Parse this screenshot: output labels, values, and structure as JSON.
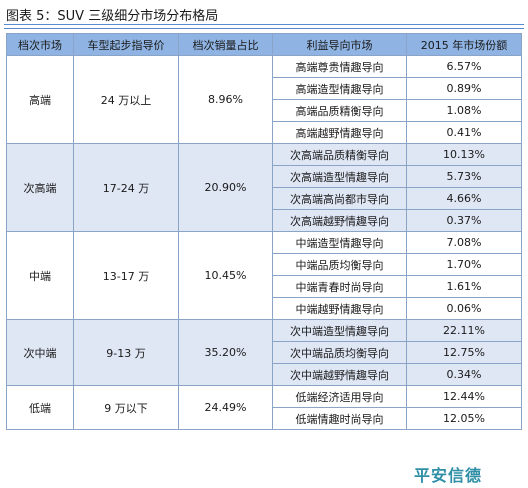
{
  "title": "图表 5：SUV 三级细分市场分布格局",
  "headers": [
    "档次市场",
    "车型起步指导价",
    "档次销量占比",
    "利益导向市场",
    "2015 年市场份额"
  ],
  "segments": [
    {
      "tier": "高端",
      "price": "24 万以上",
      "share": "8.96%",
      "shaded": false,
      "subs": [
        {
          "name": "高端尊贵情趣导向",
          "share": "6.57%"
        },
        {
          "name": "高端造型情趣导向",
          "share": "0.89%"
        },
        {
          "name": "高端品质精衡导向",
          "share": "1.08%"
        },
        {
          "name": "高端越野情趣导向",
          "share": "0.41%"
        }
      ]
    },
    {
      "tier": "次高端",
      "price": "17-24 万",
      "share": "20.90%",
      "shaded": true,
      "subs": [
        {
          "name": "次高端品质精衡导向",
          "share": "10.13%"
        },
        {
          "name": "次高端造型情趣导向",
          "share": "5.73%"
        },
        {
          "name": "次高端高尚都市导向",
          "share": "4.66%"
        },
        {
          "name": "次高端越野情趣导向",
          "share": "0.37%"
        }
      ]
    },
    {
      "tier": "中端",
      "price": "13-17 万",
      "share": "10.45%",
      "shaded": false,
      "subs": [
        {
          "name": "中端造型情趣导向",
          "share": "7.08%"
        },
        {
          "name": "中端品质均衡导向",
          "share": "1.70%"
        },
        {
          "name": "中端青春时尚导向",
          "share": "1.61%"
        },
        {
          "name": "中端越野情趣导向",
          "share": "0.06%"
        }
      ]
    },
    {
      "tier": "次中端",
      "price": "9-13 万",
      "share": "35.20%",
      "shaded": true,
      "subs": [
        {
          "name": "次中端造型情趣导向",
          "share": "22.11%"
        },
        {
          "name": "次中端品质均衡导向",
          "share": "12.75%"
        },
        {
          "name": "次中端越野情趣导向",
          "share": "0.34%"
        }
      ]
    },
    {
      "tier": "低端",
      "price": "9 万以下",
      "share": "24.49%",
      "shaded": false,
      "subs": [
        {
          "name": "低端经济适用导向",
          "share": "12.44%"
        },
        {
          "name": "低端情趣时尚导向",
          "share": "12.05%"
        }
      ]
    }
  ],
  "logo": "平安信德",
  "colors": {
    "header_bg": "#8fb4e3",
    "shaded_bg": "#dfe6f4",
    "rule": "#5a8ad0",
    "logo": "#2e8fa6"
  }
}
